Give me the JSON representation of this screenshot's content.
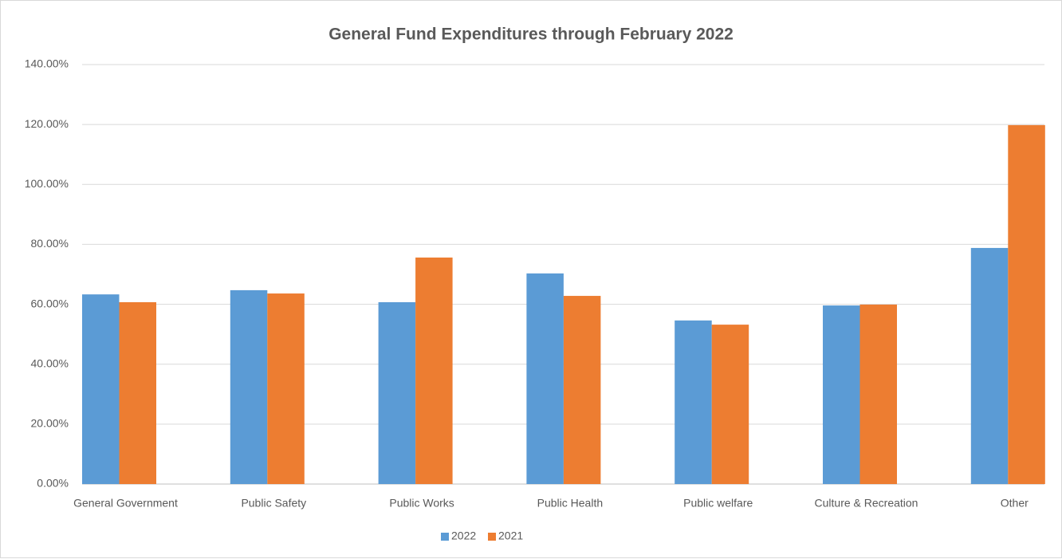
{
  "chart_data": {
    "type": "bar",
    "title": "General Fund Expenditures through February 2022",
    "categories": [
      "General Government",
      "Public Safety",
      "Public Works",
      "Public Health",
      "Public welfare",
      "Culture & Recreation",
      "Other"
    ],
    "series": [
      {
        "name": "2022",
        "color": "#5b9bd5",
        "values": [
          63.3,
          64.7,
          60.7,
          70.3,
          54.6,
          59.6,
          78.8
        ]
      },
      {
        "name": "2021",
        "color": "#ed7d31",
        "values": [
          60.7,
          63.6,
          75.6,
          62.8,
          53.2,
          59.9,
          119.8
        ]
      }
    ],
    "ylim": [
      0,
      140
    ],
    "yticks": [
      {
        "value": 0,
        "label": "0.00%"
      },
      {
        "value": 20,
        "label": "20.00%"
      },
      {
        "value": 40,
        "label": "40.00%"
      },
      {
        "value": 60,
        "label": "60.00%"
      },
      {
        "value": 80,
        "label": "80.00%"
      },
      {
        "value": 100,
        "label": "100.00%"
      },
      {
        "value": 120,
        "label": "120.00%"
      },
      {
        "value": 140,
        "label": "140.00%"
      }
    ],
    "grid": true,
    "legend": "bottom"
  }
}
